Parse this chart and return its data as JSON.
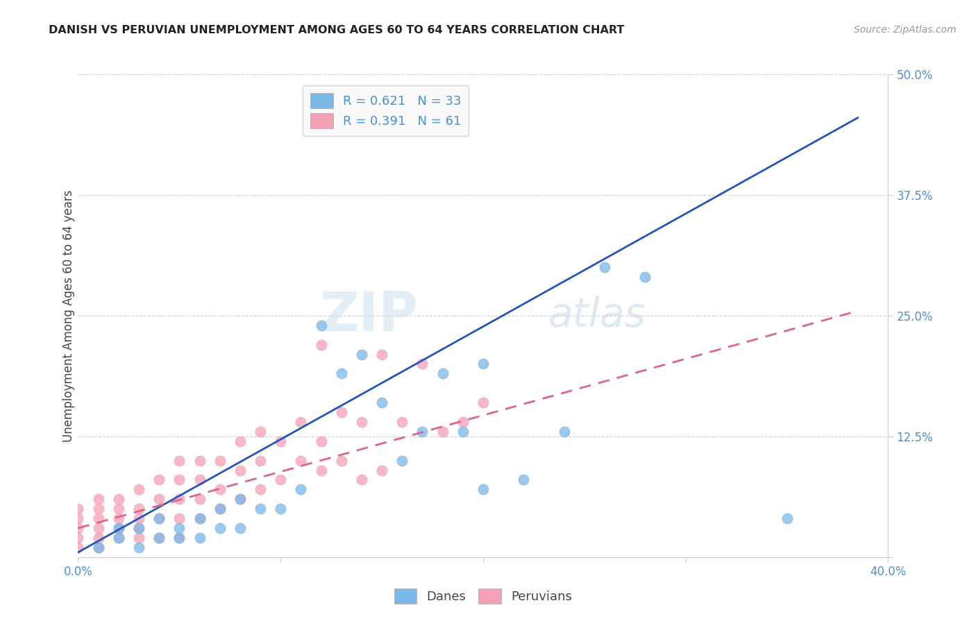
{
  "title": "DANISH VS PERUVIAN UNEMPLOYMENT AMONG AGES 60 TO 64 YEARS CORRELATION CHART",
  "source": "Source: ZipAtlas.com",
  "ylabel": "Unemployment Among Ages 60 to 64 years",
  "xlim": [
    0.0,
    0.4
  ],
  "ylim": [
    0.0,
    0.5
  ],
  "xticks": [
    0.0,
    0.1,
    0.2,
    0.3,
    0.4
  ],
  "yticks": [
    0.0,
    0.125,
    0.25,
    0.375,
    0.5
  ],
  "xtick_labels": [
    "0.0%",
    "",
    "",
    "",
    "40.0%"
  ],
  "ytick_labels": [
    "",
    "12.5%",
    "25.0%",
    "37.5%",
    "50.0%"
  ],
  "danes_color": "#7ab8e8",
  "peruvians_color": "#f4a0b5",
  "danes_line_color": "#2255bb",
  "peruvians_line_color": "#dd6688",
  "danes_R": 0.621,
  "danes_N": 33,
  "peruvians_R": 0.391,
  "peruvians_N": 61,
  "danes_scatter_x": [
    0.01,
    0.02,
    0.02,
    0.03,
    0.03,
    0.04,
    0.04,
    0.05,
    0.05,
    0.06,
    0.06,
    0.07,
    0.07,
    0.08,
    0.08,
    0.09,
    0.1,
    0.11,
    0.12,
    0.13,
    0.14,
    0.15,
    0.16,
    0.17,
    0.18,
    0.19,
    0.2,
    0.2,
    0.22,
    0.24,
    0.26,
    0.28,
    0.35
  ],
  "danes_scatter_y": [
    0.01,
    0.02,
    0.03,
    0.01,
    0.03,
    0.02,
    0.04,
    0.02,
    0.03,
    0.02,
    0.04,
    0.03,
    0.05,
    0.03,
    0.06,
    0.05,
    0.05,
    0.07,
    0.24,
    0.19,
    0.21,
    0.16,
    0.1,
    0.13,
    0.19,
    0.13,
    0.2,
    0.07,
    0.08,
    0.13,
    0.3,
    0.29,
    0.04
  ],
  "peruvians_scatter_x": [
    0.0,
    0.0,
    0.0,
    0.0,
    0.0,
    0.01,
    0.01,
    0.01,
    0.01,
    0.01,
    0.01,
    0.02,
    0.02,
    0.02,
    0.02,
    0.02,
    0.03,
    0.03,
    0.03,
    0.03,
    0.03,
    0.04,
    0.04,
    0.04,
    0.04,
    0.05,
    0.05,
    0.05,
    0.05,
    0.05,
    0.06,
    0.06,
    0.06,
    0.06,
    0.07,
    0.07,
    0.07,
    0.08,
    0.08,
    0.08,
    0.09,
    0.09,
    0.09,
    0.1,
    0.1,
    0.11,
    0.11,
    0.12,
    0.12,
    0.12,
    0.13,
    0.13,
    0.14,
    0.14,
    0.15,
    0.15,
    0.16,
    0.17,
    0.18,
    0.19,
    0.2
  ],
  "peruvians_scatter_y": [
    0.01,
    0.02,
    0.03,
    0.04,
    0.05,
    0.01,
    0.02,
    0.03,
    0.04,
    0.05,
    0.06,
    0.02,
    0.03,
    0.04,
    0.05,
    0.06,
    0.02,
    0.03,
    0.04,
    0.05,
    0.07,
    0.02,
    0.04,
    0.06,
    0.08,
    0.02,
    0.04,
    0.06,
    0.08,
    0.1,
    0.04,
    0.06,
    0.08,
    0.1,
    0.05,
    0.07,
    0.1,
    0.06,
    0.09,
    0.12,
    0.07,
    0.1,
    0.13,
    0.08,
    0.12,
    0.1,
    0.14,
    0.09,
    0.12,
    0.22,
    0.1,
    0.15,
    0.08,
    0.14,
    0.09,
    0.21,
    0.14,
    0.2,
    0.13,
    0.14,
    0.16
  ],
  "danes_line_x": [
    0.0,
    0.385
  ],
  "danes_line_y": [
    0.005,
    0.455
  ],
  "peruvians_line_x": [
    0.0,
    0.385
  ],
  "peruvians_line_y": [
    0.03,
    0.255
  ],
  "watermark_zip": "ZIP",
  "watermark_atlas": "atlas",
  "background_color": "#ffffff",
  "grid_color": "#cccccc",
  "title_color": "#222222",
  "axis_color": "#4a90d9",
  "legend_box_color": "#f8f8f8"
}
